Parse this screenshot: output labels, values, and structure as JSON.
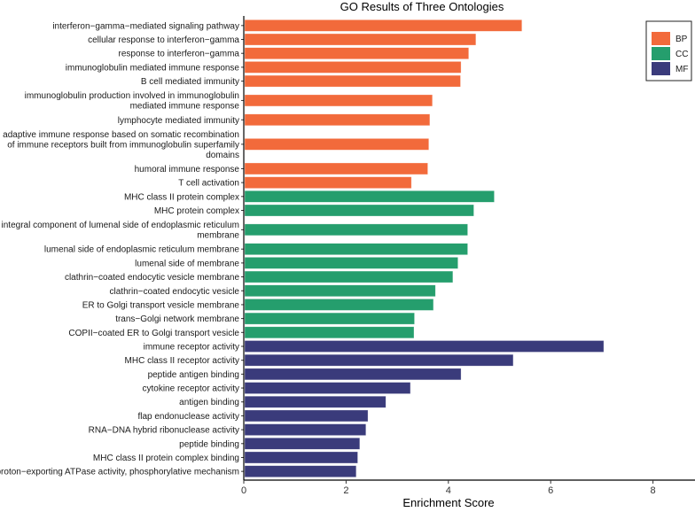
{
  "chart_data": {
    "type": "bar",
    "orientation": "horizontal",
    "title": "GO Results of Three Ontologies",
    "xlabel": "Enrichment Score",
    "ylabel": "",
    "xlim": [
      0,
      8.8
    ],
    "xticks": [
      0,
      2,
      4,
      6,
      8
    ],
    "grid": false,
    "legend_position": "top-right",
    "colors": {
      "BP": "#F26A3B",
      "CC": "#259E6D",
      "MF": "#3A3B7B"
    },
    "legend": [
      "BP",
      "CC",
      "MF"
    ],
    "bars": [
      {
        "label": "interferon−gamma−mediated signaling pathway",
        "value": 5.42,
        "group": "BP"
      },
      {
        "label": "cellular response to interferon−gamma",
        "value": 4.52,
        "group": "BP"
      },
      {
        "label": "response to interferon−gamma",
        "value": 4.38,
        "group": "BP"
      },
      {
        "label": "immunoglobulin mediated immune response",
        "value": 4.23,
        "group": "BP"
      },
      {
        "label": "B cell mediated immunity",
        "value": 4.22,
        "group": "BP"
      },
      {
        "label": "immunoglobulin production involved in immunoglobulin\nmediated immune response",
        "value": 3.67,
        "group": "BP"
      },
      {
        "label": "lymphocyte mediated immunity",
        "value": 3.62,
        "group": "BP"
      },
      {
        "label": "adaptive immune response based on somatic recombination\nof immune receptors built from immunoglobulin superfamily\ndomains",
        "value": 3.6,
        "group": "BP"
      },
      {
        "label": "humoral immune response",
        "value": 3.58,
        "group": "BP"
      },
      {
        "label": "T cell activation",
        "value": 3.26,
        "group": "BP"
      },
      {
        "label": "MHC class II protein complex",
        "value": 4.88,
        "group": "CC"
      },
      {
        "label": "MHC protein complex",
        "value": 4.48,
        "group": "CC"
      },
      {
        "label": "integral component of lumenal side of endoplasmic reticulum\nmembrane",
        "value": 4.36,
        "group": "CC"
      },
      {
        "label": "lumenal side of endoplasmic reticulum membrane",
        "value": 4.36,
        "group": "CC"
      },
      {
        "label": "lumenal side of membrane",
        "value": 4.17,
        "group": "CC"
      },
      {
        "label": "clathrin−coated endocytic vesicle membrane",
        "value": 4.07,
        "group": "CC"
      },
      {
        "label": "clathrin−coated endocytic vesicle",
        "value": 3.73,
        "group": "CC"
      },
      {
        "label": "ER to Golgi transport vesicle membrane",
        "value": 3.69,
        "group": "CC"
      },
      {
        "label": "trans−Golgi network membrane",
        "value": 3.32,
        "group": "CC"
      },
      {
        "label": "COPII−coated ER to Golgi transport vesicle",
        "value": 3.31,
        "group": "CC"
      },
      {
        "label": "immune receptor activity",
        "value": 7.02,
        "group": "MF"
      },
      {
        "label": "MHC class II receptor activity",
        "value": 5.25,
        "group": "MF"
      },
      {
        "label": "peptide antigen binding",
        "value": 4.23,
        "group": "MF"
      },
      {
        "label": "cytokine receptor activity",
        "value": 3.24,
        "group": "MF"
      },
      {
        "label": "antigen binding",
        "value": 2.76,
        "group": "MF"
      },
      {
        "label": "flap endonuclease activity",
        "value": 2.41,
        "group": "MF"
      },
      {
        "label": "RNA−DNA hybrid ribonuclease activity",
        "value": 2.37,
        "group": "MF"
      },
      {
        "label": "peptide binding",
        "value": 2.25,
        "group": "MF"
      },
      {
        "label": "MHC class II protein complex binding",
        "value": 2.21,
        "group": "MF"
      },
      {
        "label": "proton−exporting ATPase activity, phosphorylative mechanism",
        "value": 2.18,
        "group": "MF"
      }
    ]
  }
}
